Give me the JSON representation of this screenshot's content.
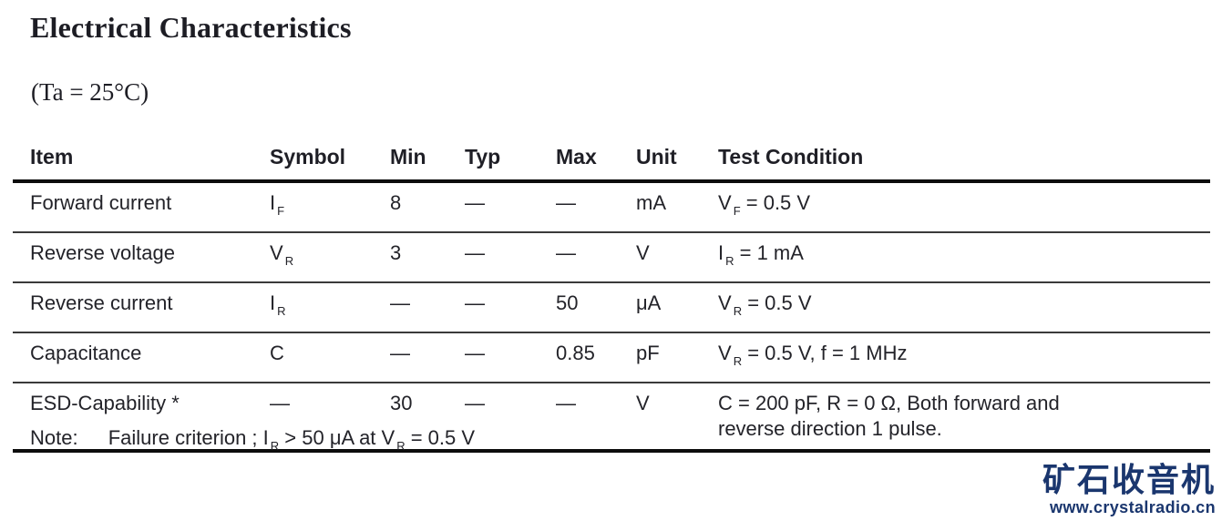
{
  "page": {
    "title": "Electrical Characteristics",
    "temperature_condition": "(Ta = 25°C)"
  },
  "table": {
    "headers": [
      "Item",
      "Symbol",
      "Min",
      "Typ",
      "Max",
      "Unit",
      "Test Condition"
    ],
    "rows": [
      {
        "item": "Forward current",
        "symbol": [
          {
            "t": "I"
          },
          {
            "t": "F",
            "sub": true
          }
        ],
        "min": "8",
        "typ": "—",
        "max": "—",
        "unit": "mA",
        "condition": [
          {
            "t": "V"
          },
          {
            "t": "F",
            "sub": true
          },
          {
            "t": " = 0.5 V"
          }
        ]
      },
      {
        "item": "Reverse voltage",
        "symbol": [
          {
            "t": "V"
          },
          {
            "t": "R",
            "sub": true
          }
        ],
        "min": "3",
        "typ": "—",
        "max": "—",
        "unit": "V",
        "condition": [
          {
            "t": "I"
          },
          {
            "t": "R",
            "sub": true
          },
          {
            "t": " = 1 mA"
          }
        ]
      },
      {
        "item": "Reverse current",
        "symbol": [
          {
            "t": "I"
          },
          {
            "t": "R",
            "sub": true
          }
        ],
        "min": "—",
        "typ": "—",
        "max": "50",
        "unit": "μA",
        "condition": [
          {
            "t": "V"
          },
          {
            "t": "R",
            "sub": true
          },
          {
            "t": " = 0.5 V"
          }
        ]
      },
      {
        "item": "Capacitance",
        "symbol": [
          {
            "t": "C"
          }
        ],
        "min": "—",
        "typ": "—",
        "max": "0.85",
        "unit": "pF",
        "condition": [
          {
            "t": "V"
          },
          {
            "t": "R",
            "sub": true
          },
          {
            "t": " = 0.5 V, f = 1 MHz"
          }
        ]
      },
      {
        "item": "ESD-Capability *",
        "symbol": [
          {
            "t": "—"
          }
        ],
        "min": "30",
        "typ": "—",
        "max": "—",
        "unit": "V",
        "condition": [
          {
            "t": "C = 200 pF, R = 0 Ω, Both forward and"
          },
          {
            "br": true
          },
          {
            "t": "reverse direction 1 pulse."
          }
        ]
      }
    ]
  },
  "note": {
    "label": "Note:",
    "segments": [
      {
        "t": "Failure criterion ; I"
      },
      {
        "t": "R",
        "sub": true
      },
      {
        "t": " > 50 μA at V"
      },
      {
        "t": "R",
        "sub": true
      },
      {
        "t": " = 0.5 V"
      }
    ]
  },
  "watermark": {
    "site_name": "矿石收音机",
    "site_url": "www.crystalradio.cn",
    "color": "#1a366e"
  }
}
